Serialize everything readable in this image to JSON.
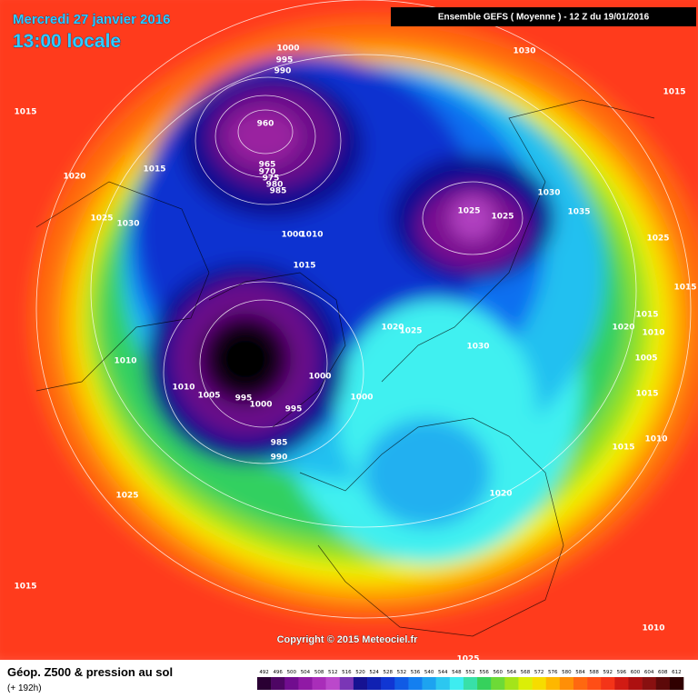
{
  "header": {
    "date": "Mercredi 27 janvier 2016",
    "time": "13:00 locale",
    "run": "Ensemble GEFS  ( Moyenne )  -  12 Z du 19/01/2016"
  },
  "copyright": "Copyright © 2015 Meteociel.fr",
  "footer": {
    "title": "Géop. Z500 & pression au sol",
    "lead": "(+ 192h)"
  },
  "scale": [
    492,
    496,
    500,
    504,
    508,
    512,
    516,
    520,
    524,
    528,
    532,
    536,
    540,
    544,
    548,
    552,
    556,
    560,
    564,
    568,
    572,
    576,
    580,
    584,
    588,
    592,
    596,
    600,
    604,
    608,
    612
  ],
  "isobar_labels": [
    1000,
    995,
    990,
    1030,
    1015,
    1015,
    960,
    1015,
    1020,
    965,
    970,
    975,
    980,
    985,
    1030,
    1035,
    1025,
    1025,
    1025,
    1030,
    1025,
    1000,
    1010,
    1015,
    1015,
    1015,
    1020,
    1010,
    1020,
    1025,
    1030,
    1005,
    1010,
    1010,
    1000,
    1005,
    995,
    1000,
    995,
    1000,
    1015,
    985,
    990,
    1015,
    1010,
    1025,
    1020,
    1015,
    1010,
    1025
  ]
}
